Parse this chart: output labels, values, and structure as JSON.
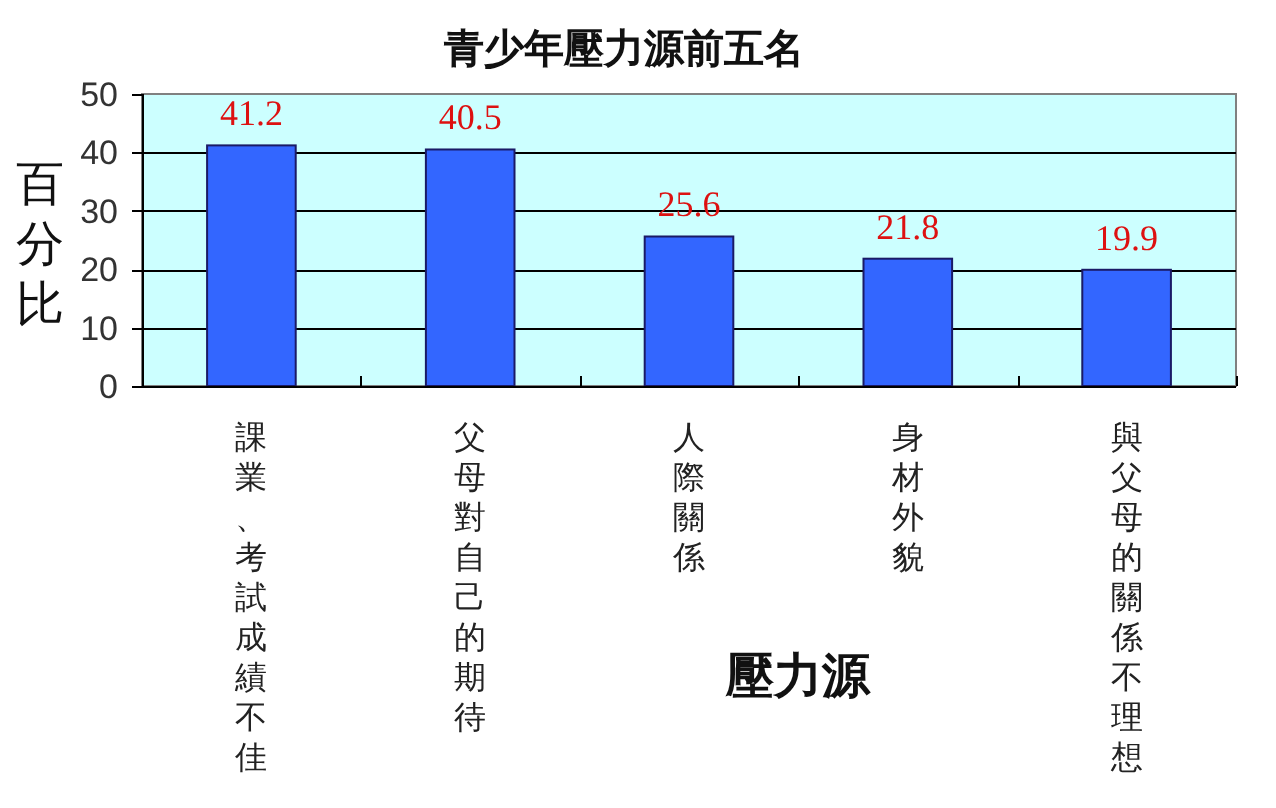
{
  "chart_data": {
    "type": "bar",
    "title": "青少年壓力源前五名",
    "xlabel": "壓力源",
    "ylabel": "百分比",
    "categories": [
      "課業、考試成績不佳",
      "父母對自己的期待",
      "人際關係",
      "身材外貌",
      "與父母的關係不理想"
    ],
    "values": [
      41.2,
      40.5,
      25.6,
      21.8,
      19.9
    ],
    "color": "#3366ff",
    "ylim": [
      0,
      50
    ],
    "yticks": [
      0,
      10,
      20,
      30,
      40,
      50
    ],
    "grid": "y",
    "data_labels": true
  }
}
